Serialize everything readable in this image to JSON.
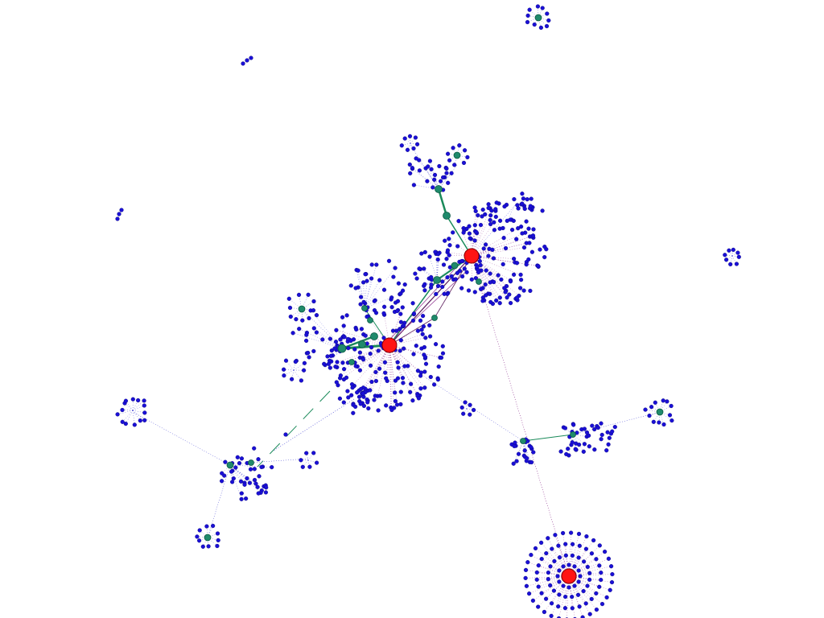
{
  "colors": {
    "background": "#ffffff",
    "leaf_node": "#1a0fd6",
    "leaf_node_stroke": "#08057a",
    "mid_node": "#1f8a6b",
    "mid_node_stroke": "#0d5a44",
    "hub_node": "#ff1414",
    "hub_node_stroke": "#8a0000",
    "edge_blue": "#3a3ad0",
    "edge_purple": "#8a2a8a",
    "edge_green": "#1a8a5a",
    "edge_dark": "#5a1a5a"
  },
  "legend": []
}
